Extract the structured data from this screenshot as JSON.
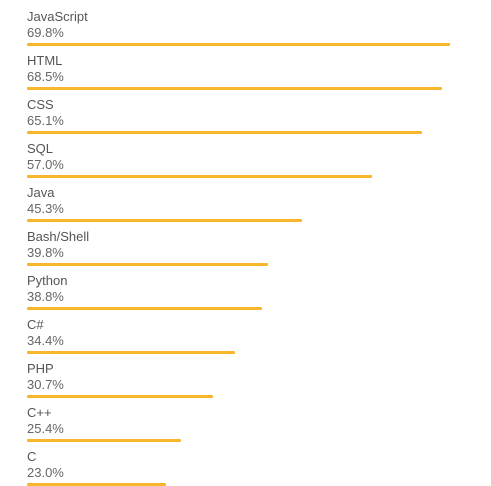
{
  "chart_data": {
    "type": "bar",
    "orientation": "horizontal",
    "categories": [
      "JavaScript",
      "HTML",
      "CSS",
      "SQL",
      "Java",
      "Bash/Shell",
      "Python",
      "C#",
      "PHP",
      "C++",
      "C"
    ],
    "values": [
      69.8,
      68.5,
      65.1,
      57.0,
      45.3,
      39.8,
      38.8,
      34.4,
      30.7,
      25.4,
      23.0
    ],
    "value_labels": [
      "69.8%",
      "68.5%",
      "65.1%",
      "57.0%",
      "45.3%",
      "39.8%",
      "38.8%",
      "34.4%",
      "30.7%",
      "25.4%",
      "23.0%"
    ],
    "unit": "%",
    "grid": false,
    "legend": "none",
    "bar_color": "#f7b62b"
  }
}
